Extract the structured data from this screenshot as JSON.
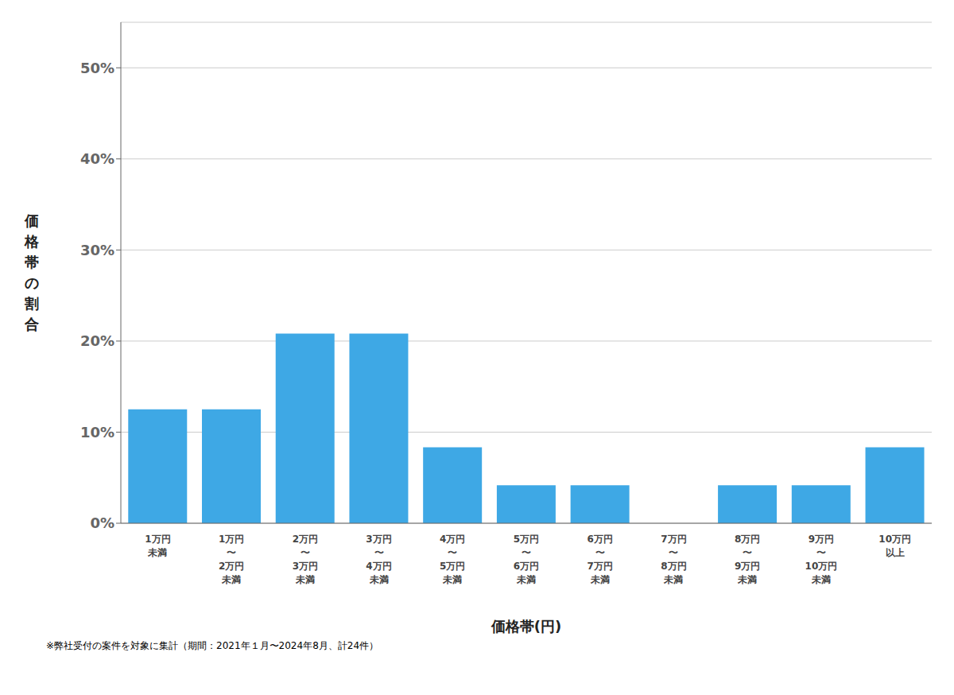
{
  "chart_data": {
    "type": "bar",
    "categories": [
      "1万円\n未満",
      "1万円\n〜\n2万円\n未満",
      "2万円\n〜\n3万円\n未満",
      "3万円\n〜\n4万円\n未満",
      "4万円\n〜\n5万円\n未満",
      "5万円\n〜\n6万円\n未満",
      "6万円\n〜\n7万円\n未満",
      "7万円\n〜\n8万円\n未満",
      "8万円\n〜\n9万円\n未満",
      "9万円\n〜\n10万円\n未満",
      "10万円\n以上"
    ],
    "values": [
      0.125,
      0.125,
      0.2083,
      0.2083,
      0.0833,
      0.0417,
      0.0417,
      0.0,
      0.0417,
      0.0417,
      0.0833
    ],
    "color": "#3EA8E5",
    "xlabel": "価格帯(円)",
    "ylabel": "価格帯の割合",
    "ylim": [
      0,
      0.55
    ],
    "yticks": [
      {
        "value": 0.0,
        "label": "0%"
      },
      {
        "value": 0.1,
        "label": "10%"
      },
      {
        "value": 0.2,
        "label": "20%"
      },
      {
        "value": 0.3,
        "label": "30%"
      },
      {
        "value": 0.4,
        "label": "40%"
      },
      {
        "value": 0.5,
        "label": "50%"
      }
    ],
    "grid": true,
    "annotations": [
      "※弊社受付の案件を対象に集計（期間：2021年１月〜2024年8月、計24件）"
    ]
  }
}
